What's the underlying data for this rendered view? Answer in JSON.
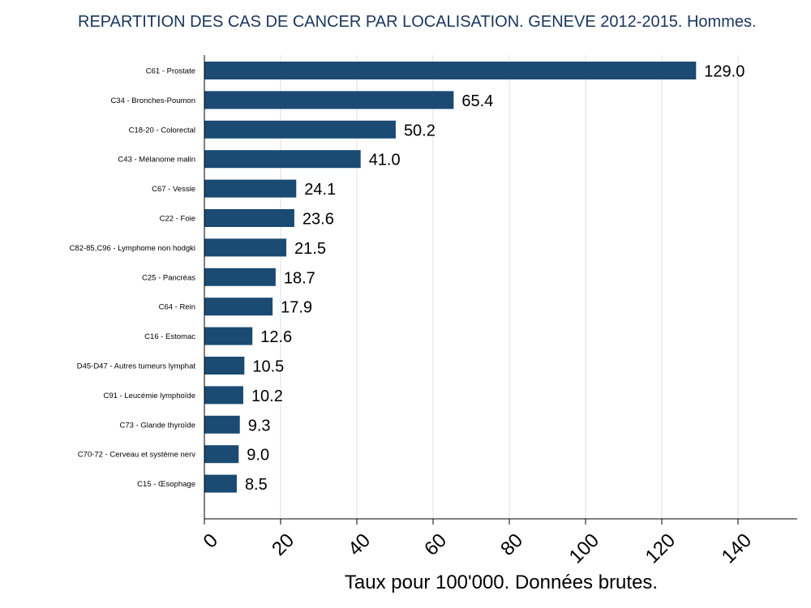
{
  "chart_data": {
    "type": "bar",
    "orientation": "horizontal",
    "title": "REPARTITION DES CAS DE CANCER PAR LOCALISATION. GENEVE 2012-2015. Hommes.",
    "xlabel": "Taux pour 100'000. Données brutes.",
    "ylabel": "",
    "xlim": [
      0,
      155
    ],
    "xticks": [
      0,
      20,
      40,
      60,
      80,
      100,
      120,
      140
    ],
    "grid": "vertical",
    "bar_color": "#1b4a72",
    "categories": [
      "C61 - Prostate",
      "C34 - Bronches-Poumon",
      "C18-20 - Colorectal",
      "C43 - Mélanome malin",
      "C67 - Vessie",
      "C22 - Foie",
      "C82-85,C96 - Lymphome non hodgki",
      "C25 - Pancréas",
      "C64 - Rein",
      "C16 - Estomac",
      "D45-D47 - Autres tumeurs lymphat",
      "C91 - Leucémie lymphoïde",
      "C73 - Glande thyroïde",
      "C70-72 - Cerveau et système nerv",
      "C15 - Œsophage"
    ],
    "values": [
      129.0,
      65.4,
      50.2,
      41.0,
      24.1,
      23.6,
      21.5,
      18.7,
      17.9,
      12.6,
      10.5,
      10.2,
      9.3,
      9.0,
      8.5
    ],
    "value_labels": [
      "129.0",
      "65.4",
      "50.2",
      "41.0",
      "24.1",
      "23.6",
      "21.5",
      "18.7",
      "17.9",
      "12.6",
      "10.5",
      "10.2",
      "9.3",
      "9.0",
      "8.5"
    ]
  }
}
